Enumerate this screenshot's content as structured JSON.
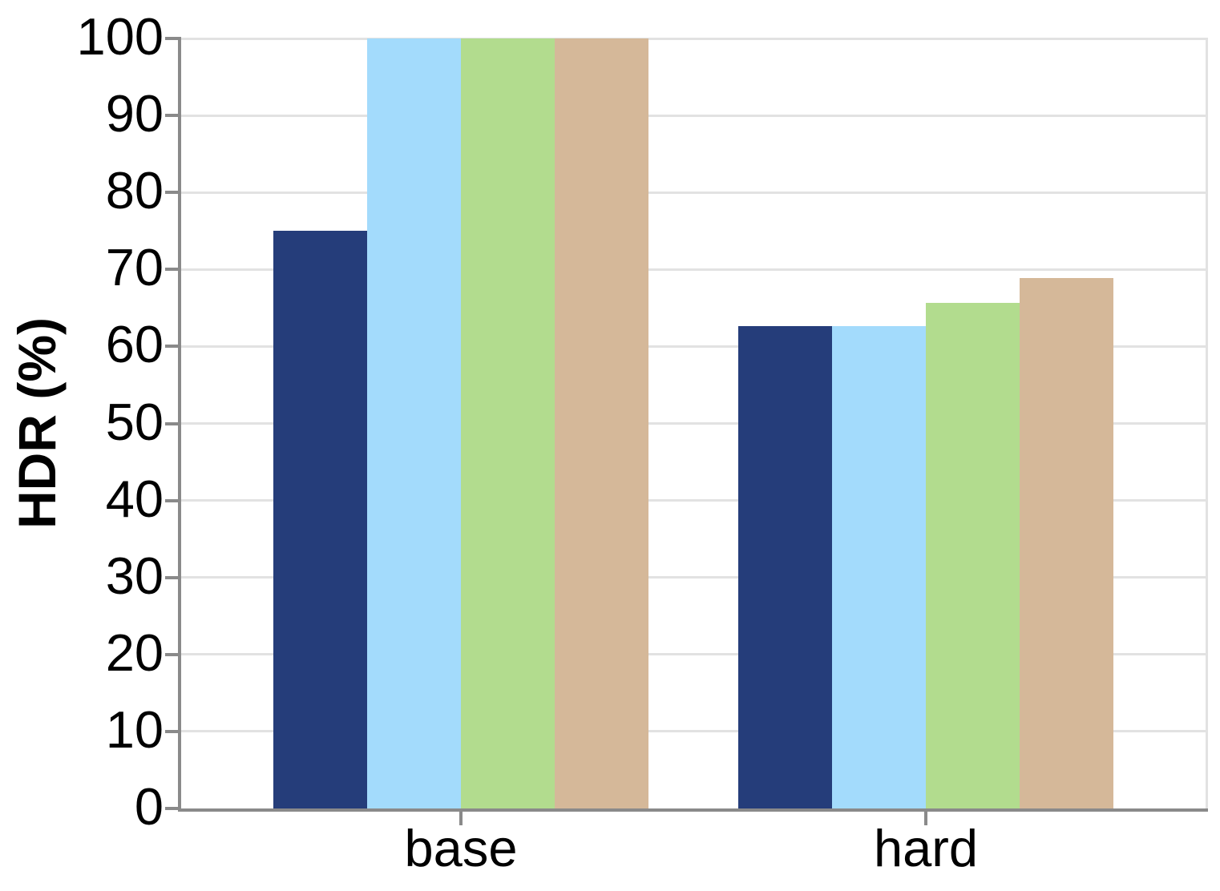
{
  "chart_data": {
    "type": "bar",
    "title": "",
    "xlabel": "",
    "ylabel": "HDR (%)",
    "categories": [
      "base",
      "hard"
    ],
    "series": [
      {
        "name": "navy",
        "color": "#253d7a",
        "values": [
          75,
          62.6
        ]
      },
      {
        "name": "light-blue",
        "color": "#a3dbfc",
        "values": [
          100,
          62.6
        ]
      },
      {
        "name": "green",
        "color": "#b2dc8e",
        "values": [
          100,
          65.7
        ]
      },
      {
        "name": "tan",
        "color": "#d5b899",
        "values": [
          100,
          68.9
        ]
      }
    ],
    "ylim": [
      0,
      100
    ],
    "yticks": [
      0,
      10,
      20,
      30,
      40,
      50,
      60,
      70,
      80,
      90,
      100
    ],
    "grid": true,
    "legend": false
  },
  "colors": {
    "axis": "#8a8a8a",
    "gridline": "#e2e2e2",
    "text": "#000000",
    "background": "#ffffff"
  }
}
